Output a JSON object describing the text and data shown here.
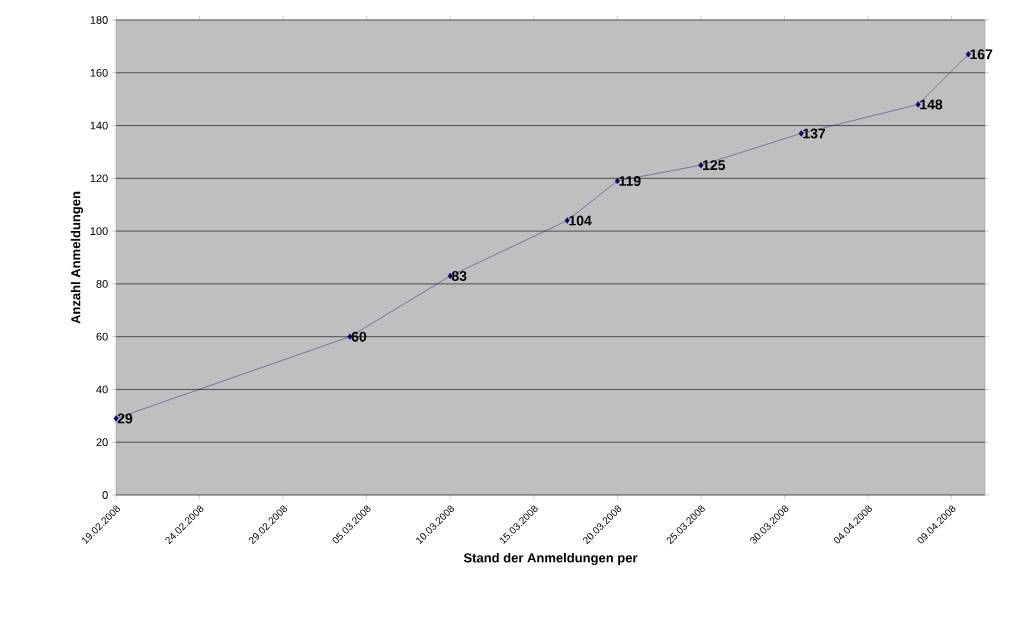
{
  "chart_data": {
    "type": "line",
    "xlabel": "Stand der Anmeldungen per",
    "ylabel": "Anzahl Anmeldungen",
    "x": [
      "2008-02-19",
      "2008-03-04",
      "2008-03-10",
      "2008-03-17",
      "2008-03-20",
      "2008-03-25",
      "2008-03-31",
      "2008-04-07",
      "2008-04-10"
    ],
    "series": [
      {
        "color": "#000080",
        "values": [
          29,
          60,
          83,
          104,
          119,
          125,
          137,
          148,
          167
        ]
      }
    ],
    "xlim": [
      "2008-02-19",
      "2008-04-11"
    ],
    "xticks": [
      {
        "value": "2008-02-19",
        "label": "19.02.2008"
      },
      {
        "value": "2008-02-24",
        "label": "24.02.2008"
      },
      {
        "value": "2008-02-29",
        "label": "29.02.2008"
      },
      {
        "value": "2008-03-05",
        "label": "05.03.2008"
      },
      {
        "value": "2008-03-10",
        "label": "10.03.2008"
      },
      {
        "value": "2008-03-15",
        "label": "15.03.2008"
      },
      {
        "value": "2008-03-20",
        "label": "20.03.2008"
      },
      {
        "value": "2008-03-25",
        "label": "25.03.2008"
      },
      {
        "value": "2008-03-30",
        "label": "30.03.2008"
      },
      {
        "value": "2008-04-04",
        "label": "04.04.2008"
      },
      {
        "value": "2008-04-09",
        "label": "09.04.2008"
      }
    ],
    "ylim": [
      0,
      180
    ],
    "yticks": [
      0,
      20,
      40,
      60,
      80,
      100,
      120,
      140,
      160,
      180
    ],
    "grid": "y",
    "marker": "diamond",
    "line_style": "solid",
    "data_labels": true
  }
}
